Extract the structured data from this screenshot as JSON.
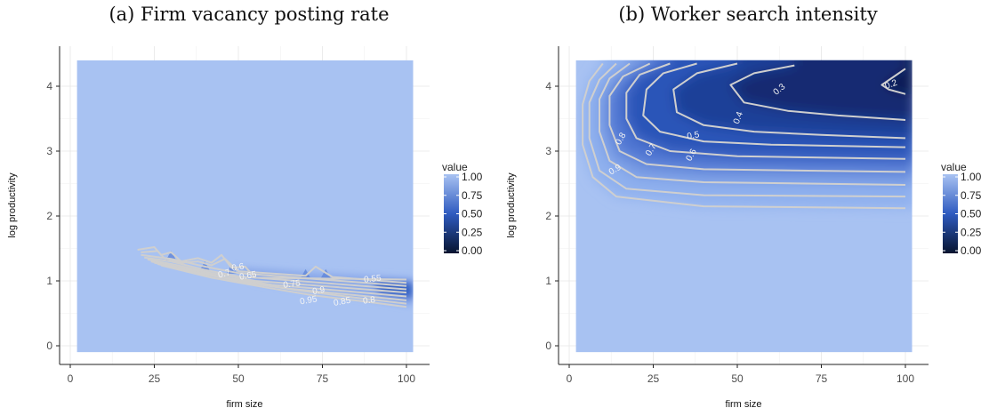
{
  "chart_data": [
    {
      "type": "heatmap",
      "title": "(a) Firm vacancy posting rate",
      "xlabel": "firm size",
      "ylabel": "log productivity",
      "xlim": [
        0,
        102
      ],
      "ylim": [
        -0.1,
        4.4
      ],
      "x_ticks": [
        "0",
        "25",
        "50",
        "75",
        "100"
      ],
      "y_ticks": [
        "0",
        "1",
        "2",
        "3",
        "4"
      ],
      "x_tick_values": [
        0,
        25,
        50,
        75,
        100
      ],
      "y_tick_values": [
        0,
        1,
        2,
        3,
        4
      ],
      "grid": true,
      "legend": {
        "title": "value",
        "labels": [
          "1.00",
          "0.75",
          "0.50",
          "0.25",
          "0.00"
        ],
        "values": [
          1.0,
          0.75,
          0.5,
          0.25,
          0.0
        ],
        "placement": "right"
      },
      "colors": {
        "high": "#a8c2f2",
        "mid": "#2f5bc0",
        "low": "#07142f",
        "contour": "#cfcfcf"
      },
      "contours": [
        {
          "level": 0.55,
          "points": [
            [
              20,
              1.48
            ],
            [
              25,
              1.52
            ],
            [
              27,
              1.4
            ],
            [
              30,
              1.44
            ],
            [
              33,
              1.3
            ],
            [
              38,
              1.35
            ],
            [
              42,
              1.28
            ],
            [
              45,
              1.4
            ],
            [
              48,
              1.2
            ],
            [
              52,
              1.22
            ],
            [
              55,
              1.05
            ],
            [
              100,
              1.02
            ]
          ]
        },
        {
          "level": 0.6,
          "points": [
            [
              21,
              1.44
            ],
            [
              26,
              1.46
            ],
            [
              28,
              1.35
            ],
            [
              33,
              1.28
            ],
            [
              38,
              1.3
            ],
            [
              42,
              1.24
            ],
            [
              46,
              1.34
            ],
            [
              50,
              1.15
            ],
            [
              70,
              1.08
            ],
            [
              73,
              1.22
            ],
            [
              78,
              1.06
            ],
            [
              100,
              0.97
            ]
          ]
        },
        {
          "level": 0.65,
          "points": [
            [
              21,
              1.4
            ],
            [
              30,
              1.34
            ],
            [
              40,
              1.22
            ],
            [
              50,
              1.12
            ],
            [
              75,
              1.02
            ],
            [
              100,
              0.92
            ]
          ]
        },
        {
          "level": 0.7,
          "points": [
            [
              22,
              1.36
            ],
            [
              30,
              1.3
            ],
            [
              40,
              1.17
            ],
            [
              50,
              1.07
            ],
            [
              75,
              0.97
            ],
            [
              100,
              0.87
            ]
          ]
        },
        {
          "level": 0.75,
          "points": [
            [
              23,
              1.33
            ],
            [
              32,
              1.24
            ],
            [
              42,
              1.12
            ],
            [
              55,
              1.0
            ],
            [
              75,
              0.92
            ],
            [
              100,
              0.82
            ]
          ]
        },
        {
          "level": 0.8,
          "points": [
            [
              24,
              1.3
            ],
            [
              35,
              1.18
            ],
            [
              45,
              1.06
            ],
            [
              60,
              0.94
            ],
            [
              80,
              0.85
            ],
            [
              100,
              0.76
            ]
          ]
        },
        {
          "level": 0.85,
          "points": [
            [
              25,
              1.28
            ],
            [
              38,
              1.14
            ],
            [
              50,
              1.0
            ],
            [
              65,
              0.88
            ],
            [
              85,
              0.78
            ],
            [
              100,
              0.7
            ]
          ]
        },
        {
          "level": 0.9,
          "points": [
            [
              26,
              1.26
            ],
            [
              40,
              1.1
            ],
            [
              55,
              0.95
            ],
            [
              70,
              0.84
            ],
            [
              85,
              0.74
            ],
            [
              100,
              0.65
            ]
          ]
        },
        {
          "level": 0.95,
          "points": [
            [
              27,
              1.24
            ],
            [
              42,
              1.05
            ],
            [
              58,
              0.9
            ],
            [
              72,
              0.78
            ],
            [
              88,
              0.68
            ],
            [
              100,
              0.6
            ]
          ]
        }
      ],
      "contour_labels": [
        {
          "text": "0.6",
          "x": 50,
          "y": 1.17,
          "angle": -10
        },
        {
          "text": "0.7",
          "x": 46,
          "y": 1.07,
          "angle": -15
        },
        {
          "text": "0.65",
          "x": 53,
          "y": 1.04,
          "angle": -10
        },
        {
          "text": "0.75",
          "x": 66,
          "y": 0.91,
          "angle": -8
        },
        {
          "text": "0.9",
          "x": 74,
          "y": 0.81,
          "angle": -10
        },
        {
          "text": "0.95",
          "x": 71,
          "y": 0.66,
          "angle": -10
        },
        {
          "text": "0.85",
          "x": 81,
          "y": 0.64,
          "angle": -10
        },
        {
          "text": "0.8",
          "x": 89,
          "y": 0.66,
          "angle": -8
        },
        {
          "text": "0.55",
          "x": 90,
          "y": 0.99,
          "angle": -6
        }
      ]
    },
    {
      "type": "heatmap",
      "title": "(b) Worker search intensity",
      "xlabel": "firm size",
      "ylabel": "log productivity",
      "xlim": [
        0,
        102
      ],
      "ylim": [
        -0.1,
        4.4
      ],
      "x_ticks": [
        "0",
        "25",
        "50",
        "75",
        "100"
      ],
      "y_ticks": [
        "0",
        "1",
        "2",
        "3",
        "4"
      ],
      "x_tick_values": [
        0,
        25,
        50,
        75,
        100
      ],
      "y_tick_values": [
        0,
        1,
        2,
        3,
        4
      ],
      "grid": true,
      "legend": {
        "title": "value",
        "labels": [
          "1.00",
          "0.75",
          "0.50",
          "0.25",
          "0.00"
        ],
        "values": [
          1.0,
          0.75,
          0.5,
          0.25,
          0.0
        ],
        "placement": "right"
      },
      "colors": {
        "high": "#a8c2f2",
        "mid": "#2f5bc0",
        "low": "#07142f",
        "contour": "#cfcfcf"
      },
      "contours": [
        {
          "level": 0.2,
          "points": [
            [
              100,
              4.27
            ],
            [
              93,
              4.02
            ],
            [
              95,
              3.95
            ],
            [
              100,
              3.88
            ]
          ]
        },
        {
          "level": 0.3,
          "points": [
            [
              67,
              4.32
            ],
            [
              55,
              4.2
            ],
            [
              48,
              4.02
            ],
            [
              52,
              3.75
            ],
            [
              65,
              3.62
            ],
            [
              80,
              3.55
            ],
            [
              100,
              3.48
            ]
          ]
        },
        {
          "level": 0.4,
          "points": [
            [
              50,
              4.35
            ],
            [
              38,
              4.2
            ],
            [
              31,
              3.95
            ],
            [
              32,
              3.6
            ],
            [
              40,
              3.4
            ],
            [
              55,
              3.3
            ],
            [
              75,
              3.25
            ],
            [
              100,
              3.2
            ]
          ]
        },
        {
          "level": 0.5,
          "points": [
            [
              38,
              4.35
            ],
            [
              28,
              4.2
            ],
            [
              23,
              3.95
            ],
            [
              22,
              3.55
            ],
            [
              27,
              3.3
            ],
            [
              40,
              3.15
            ],
            [
              60,
              3.1
            ],
            [
              100,
              3.06
            ]
          ]
        },
        {
          "level": 0.6,
          "points": [
            [
              30,
              4.35
            ],
            [
              21,
              4.18
            ],
            [
              17,
              3.9
            ],
            [
              17,
              3.5
            ],
            [
              20,
              3.2
            ],
            [
              30,
              3.0
            ],
            [
              50,
              2.92
            ],
            [
              100,
              2.88
            ]
          ]
        },
        {
          "level": 0.7,
          "points": [
            [
              24,
              4.35
            ],
            [
              16,
              4.15
            ],
            [
              12,
              3.85
            ],
            [
              12,
              3.4
            ],
            [
              15,
              3.0
            ],
            [
              23,
              2.8
            ],
            [
              40,
              2.72
            ],
            [
              100,
              2.68
            ]
          ]
        },
        {
          "level": 0.8,
          "points": [
            [
              18,
              4.35
            ],
            [
              12,
              4.12
            ],
            [
              9,
              3.8
            ],
            [
              9,
              3.3
            ],
            [
              12,
              2.85
            ],
            [
              20,
              2.6
            ],
            [
              40,
              2.52
            ],
            [
              100,
              2.48
            ]
          ]
        },
        {
          "level": 0.9,
          "points": [
            [
              14,
              4.35
            ],
            [
              9,
              4.1
            ],
            [
              6,
              3.75
            ],
            [
              6,
              3.2
            ],
            [
              9,
              2.7
            ],
            [
              17,
              2.42
            ],
            [
              40,
              2.32
            ],
            [
              100,
              2.3
            ]
          ]
        },
        {
          "level": 0.95,
          "points": [
            [
              10,
              4.35
            ],
            [
              6,
              4.08
            ],
            [
              4,
              3.72
            ],
            [
              4,
              3.1
            ],
            [
              7,
              2.6
            ],
            [
              14,
              2.3
            ],
            [
              40,
              2.15
            ],
            [
              100,
              2.12
            ]
          ]
        }
      ],
      "contour_labels": [
        {
          "text": "0.2",
          "x": 96,
          "y": 3.99,
          "angle": -20
        },
        {
          "text": "0.3",
          "x": 63,
          "y": 3.92,
          "angle": -40
        },
        {
          "text": "0.4",
          "x": 51,
          "y": 3.5,
          "angle": -70
        },
        {
          "text": "0.5",
          "x": 37,
          "y": 3.2,
          "angle": -10
        },
        {
          "text": "0.6",
          "x": 37,
          "y": 2.92,
          "angle": -60
        },
        {
          "text": "0.7",
          "x": 25,
          "y": 3.0,
          "angle": -60
        },
        {
          "text": "0.8",
          "x": 16,
          "y": 3.17,
          "angle": -60
        },
        {
          "text": "0.9",
          "x": 14,
          "y": 2.68,
          "angle": -30
        }
      ]
    }
  ]
}
